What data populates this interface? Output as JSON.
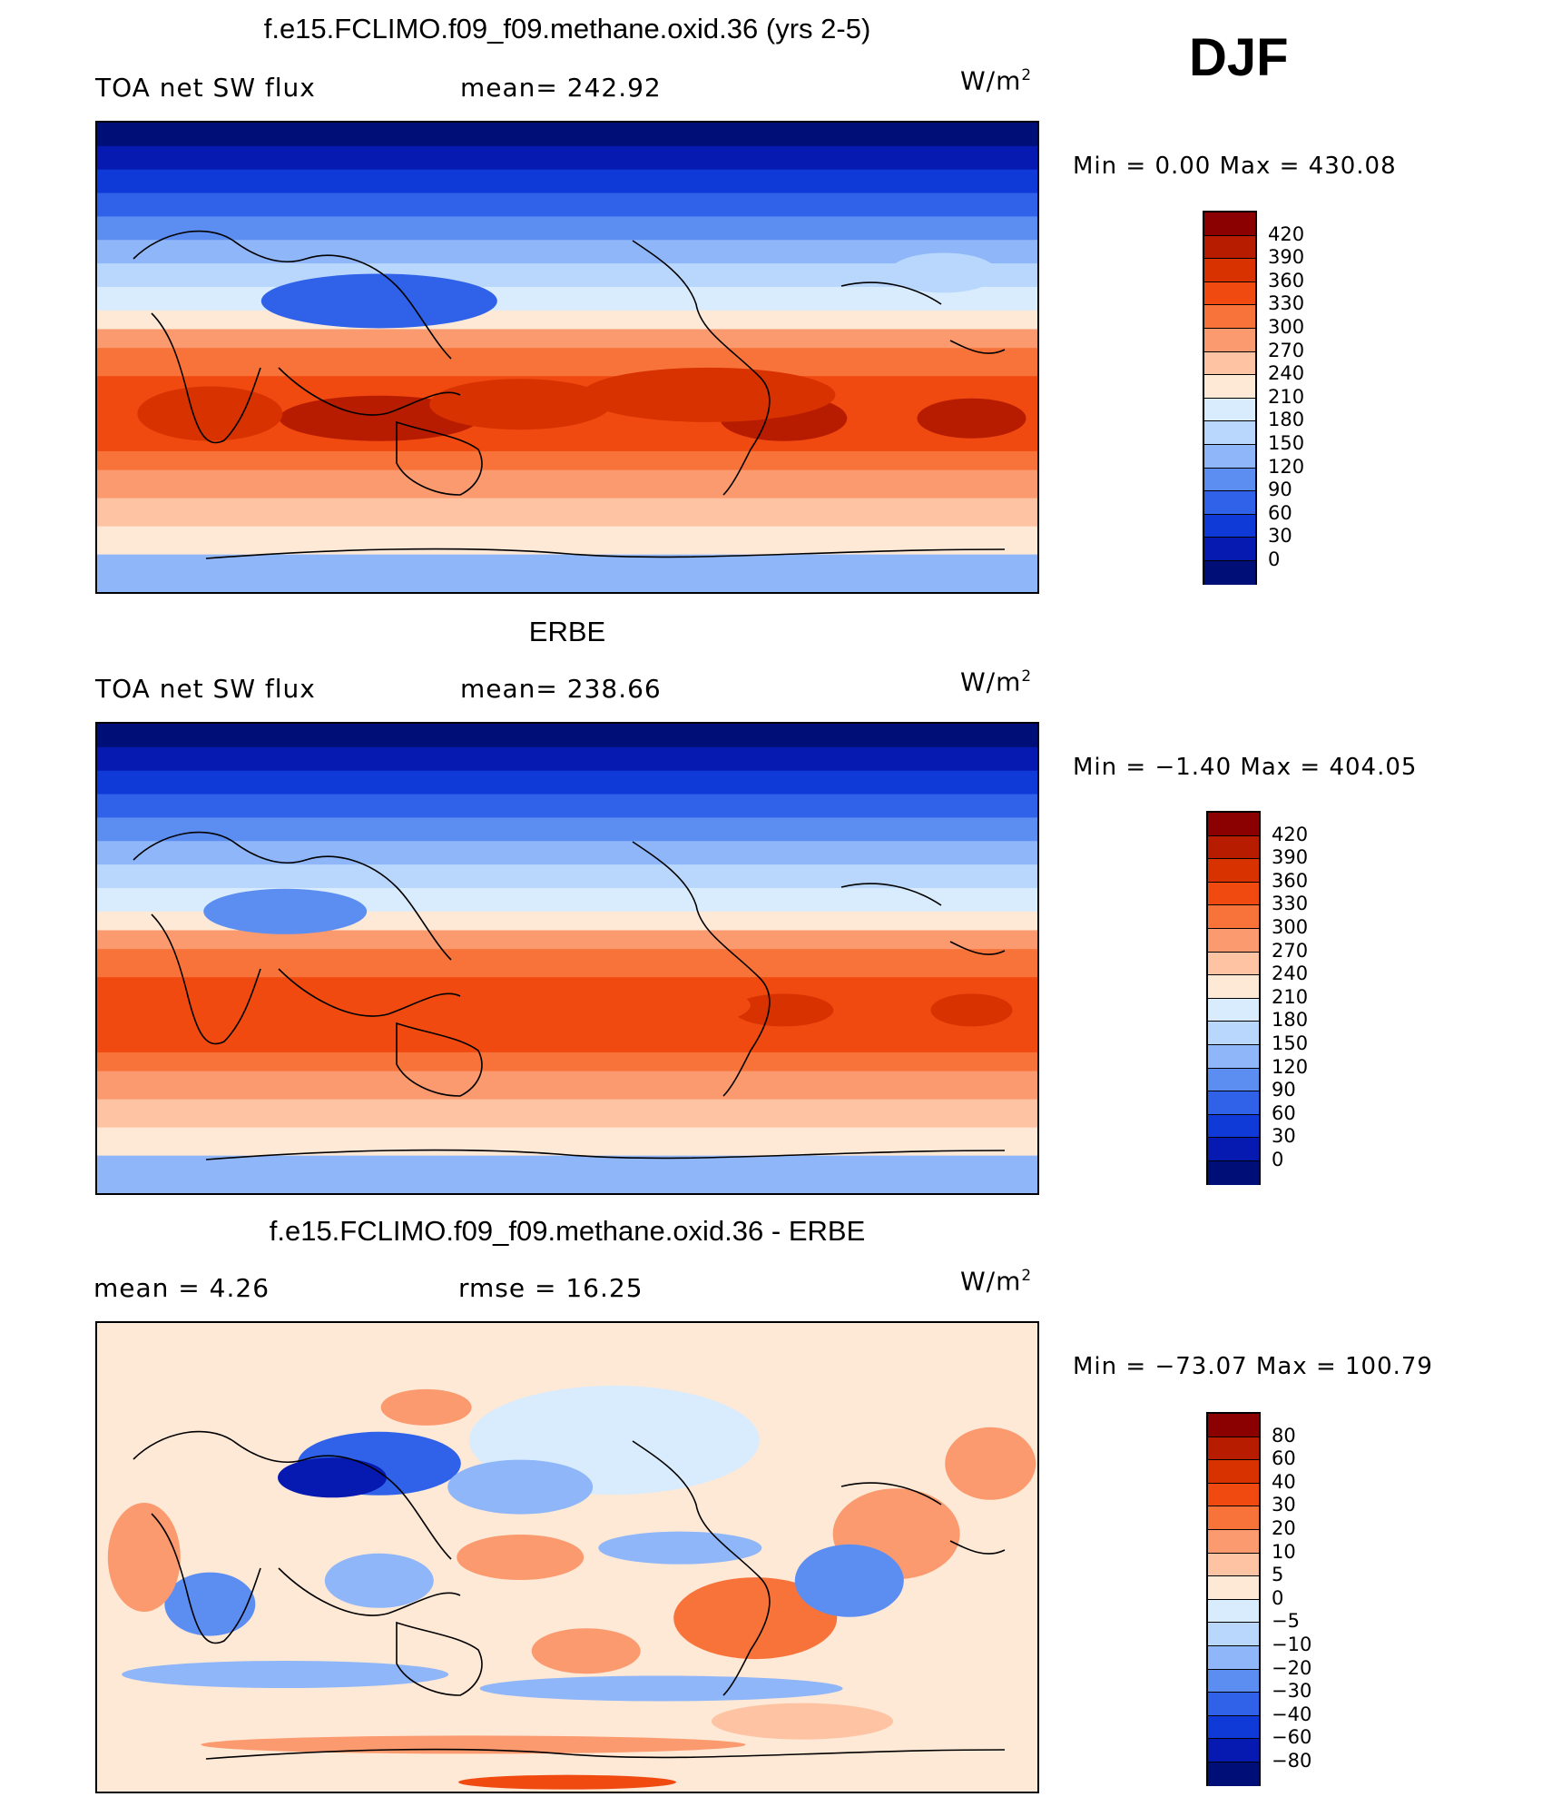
{
  "season_label": "DJF",
  "panels": [
    {
      "title": "f.e15.FCLIMO.f09_f09.methane.oxid.36 (yrs 2-5)",
      "left_label": "TOA net SW flux",
      "center_label": "mean=  242.92",
      "units_base": "W/m",
      "units_exp": "2",
      "stats": "Min =    0.00  Max  =  430.08",
      "colorbar_labels": [
        "420",
        "390",
        "360",
        "330",
        "300",
        "270",
        "240",
        "210",
        "180",
        "150",
        "120",
        "90",
        "60",
        "30",
        "0"
      ],
      "colorbar_colors": [
        "#8b0000",
        "#b81c00",
        "#d83200",
        "#f04a10",
        "#f8733a",
        "#fb9a6e",
        "#fdc3a2",
        "#fee8d6",
        "#d9ecfd",
        "#b9d7fc",
        "#8eb6f8",
        "#5c8ef2",
        "#2f62e9",
        "#0f3ad8",
        "#0619b0",
        "#000e78"
      ],
      "field": "mean"
    },
    {
      "title": "ERBE",
      "left_label": "TOA net SW flux",
      "center_label": "mean=  238.66",
      "units_base": "W/m",
      "units_exp": "2",
      "stats": "Min =   −1.40  Max  =  404.05",
      "colorbar_labels": [
        "420",
        "390",
        "360",
        "330",
        "300",
        "270",
        "240",
        "210",
        "180",
        "150",
        "120",
        "90",
        "60",
        "30",
        "0"
      ],
      "colorbar_colors": [
        "#8b0000",
        "#b81c00",
        "#d83200",
        "#f04a10",
        "#f8733a",
        "#fb9a6e",
        "#fdc3a2",
        "#fee8d6",
        "#d9ecfd",
        "#b9d7fc",
        "#8eb6f8",
        "#5c8ef2",
        "#2f62e9",
        "#0f3ad8",
        "#0619b0",
        "#000e78"
      ],
      "field": "mean"
    },
    {
      "title": "f.e15.FCLIMO.f09_f09.methane.oxid.36 - ERBE",
      "left_label": "mean =     4.26",
      "center_label": "rmse =    16.25",
      "units_base": "W/m",
      "units_exp": "2",
      "stats": "Min = −73.07  Max  =  100.79",
      "colorbar_labels": [
        "80",
        "60",
        "40",
        "30",
        "20",
        "10",
        "5",
        "0",
        "−5",
        "−10",
        "−20",
        "−30",
        "−40",
        "−60",
        "−80"
      ],
      "colorbar_colors": [
        "#8b0000",
        "#b81c00",
        "#d83200",
        "#f04a10",
        "#f8733a",
        "#fb9a6e",
        "#fdc3a2",
        "#fee8d6",
        "#d9ecfd",
        "#b9d7fc",
        "#8eb6f8",
        "#5c8ef2",
        "#2f62e9",
        "#0f3ad8",
        "#0619b0",
        "#000e78"
      ],
      "field": "diff"
    }
  ],
  "chart_data": [
    {
      "type": "heatmap",
      "title": "f.e15.FCLIMO.f09_f09.methane.oxid.36 (yrs 2-5)",
      "variable": "TOA net SW flux",
      "units": "W/m2",
      "mean": 242.92,
      "min": 0.0,
      "max": 430.08,
      "contour_levels": [
        0,
        30,
        60,
        90,
        120,
        150,
        180,
        210,
        240,
        270,
        300,
        330,
        360,
        390,
        420
      ]
    },
    {
      "type": "heatmap",
      "title": "ERBE",
      "variable": "TOA net SW flux",
      "units": "W/m2",
      "mean": 238.66,
      "min": -1.4,
      "max": 404.05,
      "contour_levels": [
        0,
        30,
        60,
        90,
        120,
        150,
        180,
        210,
        240,
        270,
        300,
        330,
        360,
        390,
        420
      ]
    },
    {
      "type": "heatmap",
      "title": "f.e15.FCLIMO.f09_f09.methane.oxid.36 - ERBE",
      "variable": "difference",
      "units": "W/m2",
      "mean": 4.26,
      "rmse": 16.25,
      "min": -73.07,
      "max": 100.79,
      "contour_levels": [
        -80,
        -60,
        -40,
        -30,
        -20,
        -10,
        -5,
        0,
        5,
        10,
        20,
        30,
        40,
        60,
        80
      ]
    }
  ]
}
